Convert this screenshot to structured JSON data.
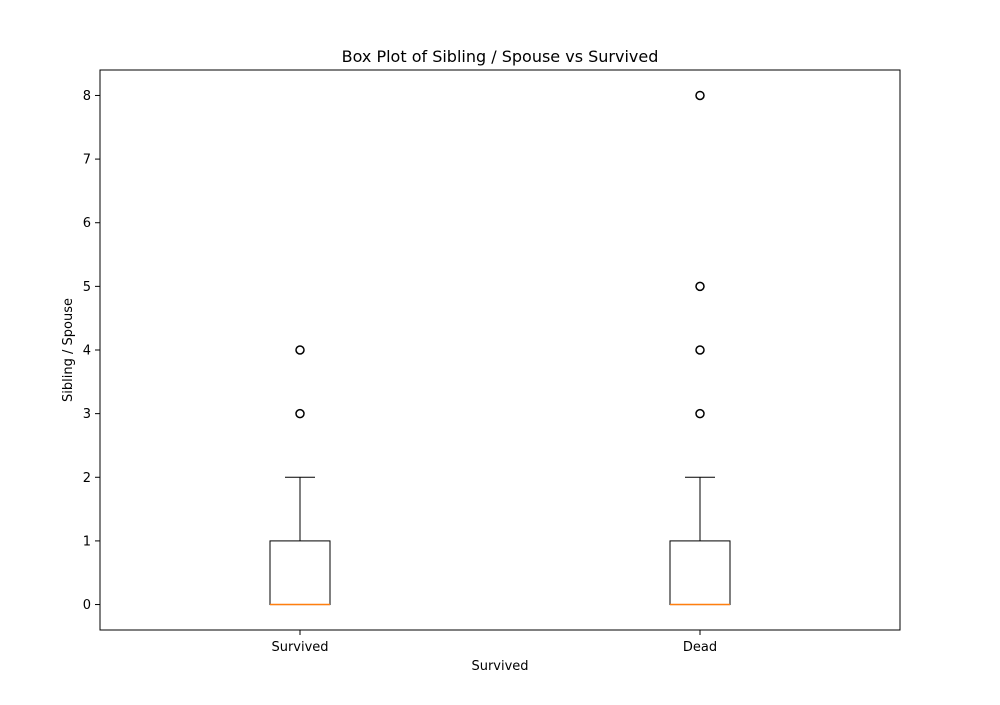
{
  "chart_data": {
    "type": "box",
    "title": "Box Plot of Sibling / Spouse vs Survived",
    "xlabel": "Survived",
    "ylabel": "Sibling / Spouse",
    "categories": [
      "Survived",
      "Dead"
    ],
    "ylim": [
      -0.4,
      8.4
    ],
    "yticks": [
      0,
      1,
      2,
      3,
      4,
      5,
      6,
      7,
      8
    ],
    "boxes": [
      {
        "category": "Survived",
        "whisker_low": 0,
        "q1": 0,
        "median": 0,
        "q3": 1,
        "whisker_high": 2,
        "outliers": [
          3,
          4
        ]
      },
      {
        "category": "Dead",
        "whisker_low": 0,
        "q1": 0,
        "median": 0,
        "q3": 1,
        "whisker_high": 2,
        "outliers": [
          3,
          4,
          5,
          8
        ]
      }
    ],
    "grid": false,
    "legend": "none",
    "colors": {
      "box": "#000000",
      "median": "#ff7f0e",
      "outlier": "#000000",
      "background": "#ffffff"
    }
  }
}
